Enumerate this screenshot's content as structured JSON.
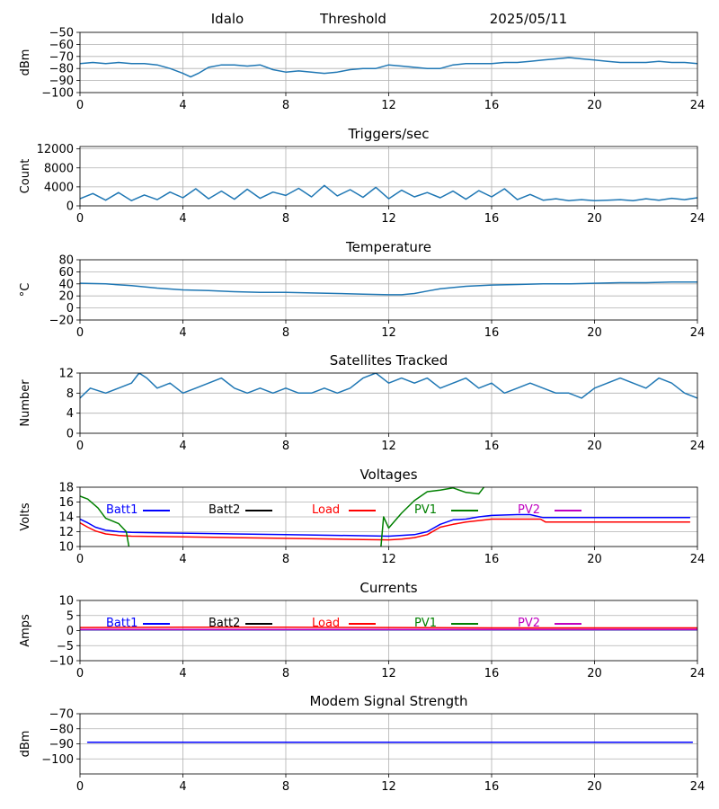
{
  "header": {
    "station": "Idalo",
    "mode": "Threshold",
    "date": "2025/05/11"
  },
  "colors": {
    "default_series": "#1f77b4",
    "batt1": "#0000ff",
    "batt2": "#000000",
    "load": "#ff0000",
    "pv1": "#008000",
    "pv2": "#bf00bf",
    "grid": "#b0b0b0"
  },
  "chart_data": [
    {
      "id": "signal",
      "type": "line",
      "title": "",
      "xlabel": "",
      "ylabel": "dBm",
      "xlim": [
        0,
        24
      ],
      "xticks": [
        0,
        4,
        8,
        12,
        16,
        20,
        24
      ],
      "ylim": [
        -100,
        -50
      ],
      "yticks": [
        -100,
        -90,
        -80,
        -70,
        -60,
        -50
      ],
      "grid": true,
      "series": [
        {
          "color_key": "default_series",
          "x": [
            0,
            0.5,
            1,
            1.5,
            2,
            2.5,
            3,
            3.5,
            4,
            4.3,
            4.6,
            5,
            5.5,
            6,
            6.5,
            7,
            7.5,
            8,
            8.5,
            9,
            9.5,
            10,
            10.5,
            11,
            11.5,
            12,
            12.5,
            13,
            13.5,
            14,
            14.5,
            15,
            15.5,
            16,
            16.5,
            17,
            17.5,
            18,
            18.5,
            19,
            19.5,
            20,
            20.5,
            21,
            21.5,
            22,
            22.5,
            23,
            23.5,
            24
          ],
          "y": [
            -76,
            -75,
            -76,
            -75,
            -76,
            -76,
            -77,
            -80,
            -84,
            -87,
            -84,
            -79,
            -77,
            -77,
            -78,
            -77,
            -81,
            -83,
            -82,
            -83,
            -84,
            -83,
            -81,
            -80,
            -80,
            -77,
            -78,
            -79,
            -80,
            -80,
            -77,
            -76,
            -76,
            -76,
            -75,
            -75,
            -74,
            -73,
            -72,
            -71,
            -72,
            -73,
            -74,
            -75,
            -75,
            -75,
            -74,
            -75,
            -75,
            -76
          ]
        }
      ]
    },
    {
      "id": "triggers",
      "type": "line",
      "title": "Triggers/sec",
      "xlabel": "",
      "ylabel": "Count",
      "xlim": [
        0,
        24
      ],
      "xticks": [
        0,
        4,
        8,
        12,
        16,
        20,
        24
      ],
      "ylim": [
        0,
        12500
      ],
      "yticks": [
        0,
        4000,
        8000,
        12000
      ],
      "grid": true,
      "series": [
        {
          "color_key": "default_series",
          "x": [
            0,
            0.5,
            1,
            1.5,
            2,
            2.5,
            3,
            3.5,
            4,
            4.5,
            5,
            5.5,
            6,
            6.5,
            7,
            7.5,
            8,
            8.5,
            9,
            9.5,
            10,
            10.5,
            11,
            11.5,
            12,
            12.5,
            13,
            13.5,
            14,
            14.5,
            15,
            15.5,
            16,
            16.5,
            17,
            17.5,
            18,
            18.5,
            19,
            19.5,
            20,
            20.5,
            21,
            21.5,
            22,
            22.5,
            23,
            23.5,
            24
          ],
          "y": [
            1500,
            2600,
            1200,
            2800,
            1100,
            2300,
            1300,
            2900,
            1700,
            3600,
            1500,
            3100,
            1400,
            3500,
            1600,
            2900,
            2200,
            3700,
            1900,
            4300,
            2100,
            3400,
            1800,
            3900,
            1500,
            3300,
            1900,
            2800,
            1700,
            3100,
            1400,
            3200,
            1900,
            3600,
            1300,
            2400,
            1200,
            1500,
            1100,
            1300,
            1100,
            1200,
            1300,
            1100,
            1500,
            1200,
            1600,
            1300,
            1700
          ]
        }
      ]
    },
    {
      "id": "temperature",
      "type": "line",
      "title": "Temperature",
      "xlabel": "",
      "ylabel": "°C",
      "xlim": [
        0,
        24
      ],
      "xticks": [
        0,
        4,
        8,
        12,
        16,
        20,
        24
      ],
      "ylim": [
        -20,
        80
      ],
      "yticks": [
        -20,
        0,
        20,
        40,
        60,
        80
      ],
      "grid": true,
      "series": [
        {
          "color_key": "default_series",
          "x": [
            0,
            1,
            2,
            3,
            4,
            5,
            6,
            7,
            8,
            9,
            10,
            11,
            12,
            12.5,
            13,
            13.5,
            14,
            15,
            16,
            17,
            18,
            19,
            20,
            21,
            22,
            23,
            24
          ],
          "y": [
            41,
            40,
            37,
            33,
            30,
            29,
            27,
            26,
            26,
            25,
            24,
            23,
            22,
            22,
            24,
            28,
            32,
            36,
            38,
            39,
            40,
            40,
            41,
            42,
            42,
            43,
            43
          ]
        }
      ]
    },
    {
      "id": "satellites",
      "type": "line",
      "title": "Satellites Tracked",
      "xlabel": "",
      "ylabel": "Number",
      "xlim": [
        0,
        24
      ],
      "xticks": [
        0,
        4,
        8,
        12,
        16,
        20,
        24
      ],
      "ylim": [
        0,
        12
      ],
      "yticks": [
        0,
        4,
        8,
        12
      ],
      "grid": true,
      "series": [
        {
          "color_key": "default_series",
          "x": [
            0,
            0.2,
            0.4,
            1,
            1.5,
            2,
            2.3,
            2.6,
            3,
            3.5,
            4,
            4.5,
            5,
            5.5,
            6,
            6.5,
            7,
            7.5,
            8,
            8.5,
            9,
            9.5,
            10,
            10.5,
            11,
            11.5,
            12,
            12.5,
            13,
            13.5,
            14,
            14.5,
            15,
            15.5,
            16,
            16.5,
            17,
            17.5,
            18,
            18.5,
            19,
            19.5,
            20,
            20.5,
            21,
            21.5,
            22,
            22.5,
            23,
            23.5,
            24
          ],
          "y": [
            7,
            8,
            9,
            8,
            9,
            10,
            12,
            11,
            9,
            10,
            8,
            9,
            10,
            11,
            9,
            8,
            9,
            8,
            9,
            8,
            8,
            9,
            8,
            9,
            11,
            12,
            10,
            11,
            10,
            11,
            9,
            10,
            11,
            9,
            10,
            8,
            9,
            10,
            9,
            8,
            8,
            7,
            9,
            10,
            11,
            10,
            9,
            11,
            10,
            8,
            7
          ]
        }
      ]
    },
    {
      "id": "voltages",
      "type": "line",
      "title": "Voltages",
      "xlabel": "",
      "ylabel": "Volts",
      "xlim": [
        0,
        24
      ],
      "xticks": [
        0,
        4,
        8,
        12,
        16,
        20,
        24
      ],
      "ylim": [
        10,
        18
      ],
      "yticks": [
        10,
        12,
        14,
        16,
        18
      ],
      "grid": true,
      "legend": [
        "Batt1",
        "Batt2",
        "Load",
        "PV1",
        "PV2"
      ],
      "series": [
        {
          "name": "Batt1",
          "color_key": "batt1",
          "x": [
            0,
            0.3,
            0.6,
            1,
            1.5,
            2,
            3,
            4,
            6,
            8,
            10,
            11,
            12,
            12.5,
            13,
            13.5,
            14,
            14.5,
            15,
            15.5,
            16,
            17,
            17.5,
            18,
            19,
            20,
            22,
            23.7
          ],
          "y": [
            13.7,
            13.2,
            12.6,
            12.2,
            12.0,
            11.9,
            11.85,
            11.8,
            11.7,
            11.6,
            11.5,
            11.45,
            11.4,
            11.5,
            11.6,
            12.0,
            13.0,
            13.6,
            13.7,
            14.0,
            14.2,
            14.3,
            14.3,
            13.9,
            13.9,
            13.9,
            13.9,
            13.9
          ]
        },
        {
          "name": "Load",
          "color_key": "load",
          "x": [
            0,
            0.3,
            0.6,
            1,
            1.5,
            2,
            3,
            4,
            6,
            8,
            10,
            11,
            12,
            12.5,
            13,
            13.5,
            14,
            14.5,
            15,
            15.5,
            16,
            17,
            17.5,
            17.9,
            18.1,
            19,
            20,
            22,
            23.7
          ],
          "y": [
            13.2,
            12.6,
            12.1,
            11.7,
            11.5,
            11.4,
            11.35,
            11.3,
            11.2,
            11.1,
            11.0,
            10.95,
            10.9,
            11.0,
            11.2,
            11.6,
            12.6,
            13.0,
            13.3,
            13.5,
            13.7,
            13.7,
            13.7,
            13.7,
            13.3,
            13.3,
            13.3,
            13.3,
            13.3
          ]
        },
        {
          "name": "PV1",
          "color_key": "pv1",
          "x": [
            0,
            0.3,
            0.7,
            1,
            1.5,
            1.8,
            1.9
          ],
          "y": [
            16.8,
            16.4,
            15.2,
            13.8,
            13.1,
            12.0,
            10.0
          ]
        },
        {
          "name": "PV1",
          "color_key": "pv1",
          "x": [
            11.7,
            11.8,
            12.0,
            12.5,
            13.0,
            13.5,
            14.0,
            14.5,
            15.0,
            15.5,
            15.7
          ],
          "y": [
            10.0,
            14.0,
            12.5,
            14.5,
            16.2,
            17.4,
            17.6,
            17.9,
            17.3,
            17.1,
            18.0
          ]
        }
      ]
    },
    {
      "id": "currents",
      "type": "line",
      "title": "Currents",
      "xlabel": "",
      "ylabel": "Amps",
      "xlim": [
        0,
        24
      ],
      "xticks": [
        0,
        4,
        8,
        12,
        16,
        20,
        24
      ],
      "ylim": [
        -10,
        10
      ],
      "yticks": [
        -10,
        -5,
        0,
        5,
        10
      ],
      "grid": true,
      "legend": [
        "Batt1",
        "Batt2",
        "Load",
        "PV1",
        "PV2"
      ],
      "series": [
        {
          "name": "Batt1",
          "color_key": "batt1",
          "x": [
            0,
            24
          ],
          "y": [
            0.3,
            0.3
          ]
        },
        {
          "name": "PV2",
          "color_key": "pv2",
          "x": [
            0,
            24
          ],
          "y": [
            0.4,
            0.4
          ]
        },
        {
          "name": "Load",
          "color_key": "load",
          "x": [
            0,
            4,
            8,
            12,
            16,
            20,
            24
          ],
          "y": [
            1.0,
            1.1,
            1.1,
            1.0,
            0.9,
            0.9,
            0.9
          ]
        }
      ]
    },
    {
      "id": "modem",
      "type": "line",
      "title": "Modem Signal Strength",
      "xlabel": "",
      "ylabel": "dBm",
      "xlim": [
        0,
        24
      ],
      "xticks": [
        0,
        4,
        8,
        12,
        16,
        20,
        24
      ],
      "ylim": [
        -110,
        -70
      ],
      "yticks": [
        -100,
        -90,
        -80,
        -70
      ],
      "grid": true,
      "series": [
        {
          "color_key": "batt1",
          "x": [
            0.3,
            23.8
          ],
          "y": [
            -89,
            -89
          ]
        }
      ]
    }
  ]
}
